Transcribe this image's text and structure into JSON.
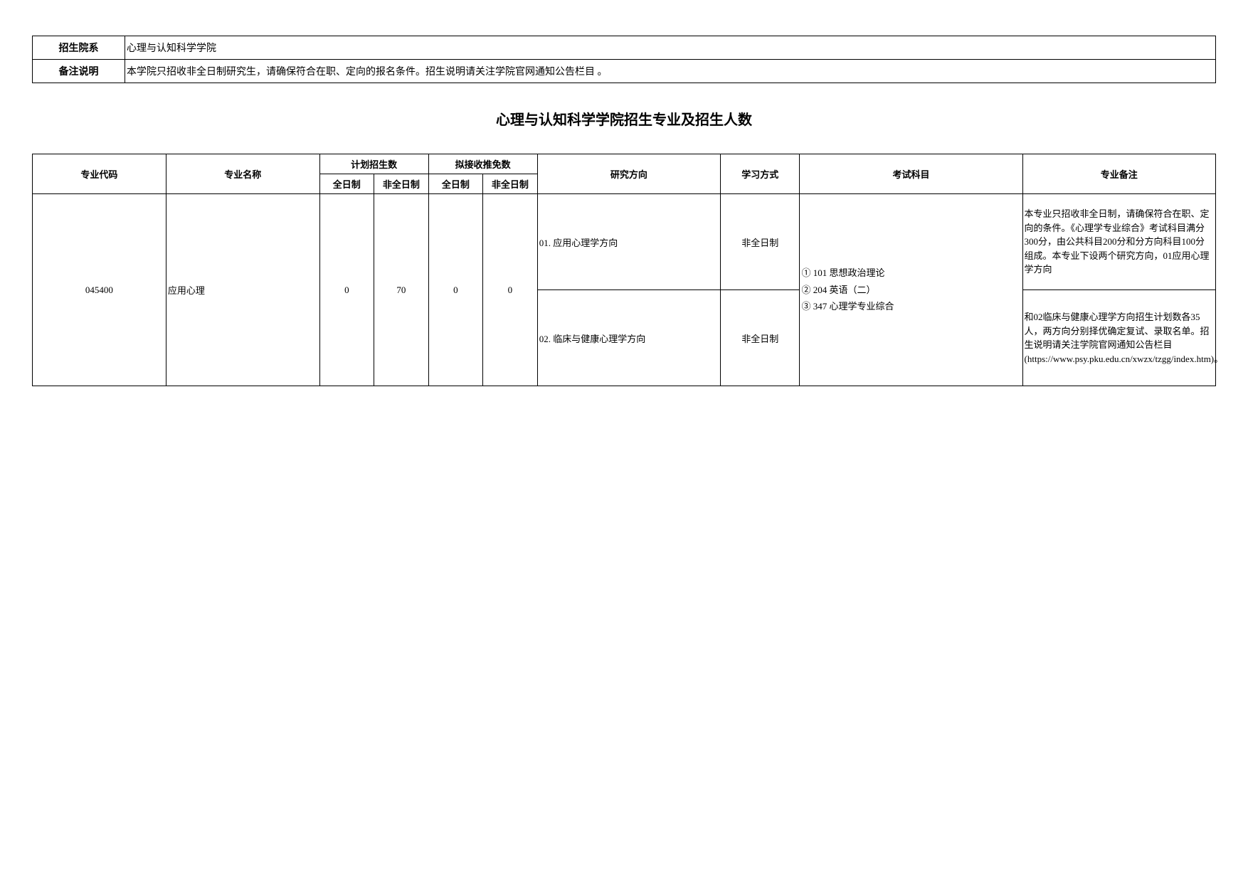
{
  "info": {
    "dept_label": "招生院系",
    "dept_value": "心理与认知科学学院",
    "remark_label": "备注说明",
    "remark_value": "本学院只招收非全日制研究生，请确保符合在职、定向的报名条件。招生说明请关注学院官网通知公告栏目 。"
  },
  "title": "心理与认知科学学院招生专业及招生人数",
  "headers": {
    "code": "专业代码",
    "name": "专业名称",
    "plan": "计划招生数",
    "rec": "拟接收推免数",
    "fulltime": "全日制",
    "parttime": "非全日制",
    "direction": "研究方向",
    "study": "学习方式",
    "exam": "考试科目",
    "remark": "专业备注"
  },
  "row": {
    "code": "045400",
    "name": "应用心理",
    "plan_ft": "0",
    "plan_pt": "70",
    "rec_ft": "0",
    "rec_pt": "0",
    "direction1": "01. 应用心理学方向",
    "study1": "非全日制",
    "direction2": "02. 临床与健康心理学方向",
    "study2": "非全日制",
    "exam1": "① 101 思想政治理论",
    "exam2": "② 204 英语（二）",
    "exam3": "③ 347 心理学专业综合",
    "remark1": "本专业只招收非全日制，请确保符合在职、定向的条件。《心理学专业综合》考试科目满分300分，由公共科目200分和分方向科目100分组成。本专业下设两个研究方向，01应用心理学方向",
    "remark2": "和02临床与健康心理学方向招生计划数各35人，两方向分别择优确定复试、录取名单。招生说明请关注学院官网通知公告栏目(https://www.psy.pku.edu.cn/xwzx/tzgg/index.htm)。"
  }
}
